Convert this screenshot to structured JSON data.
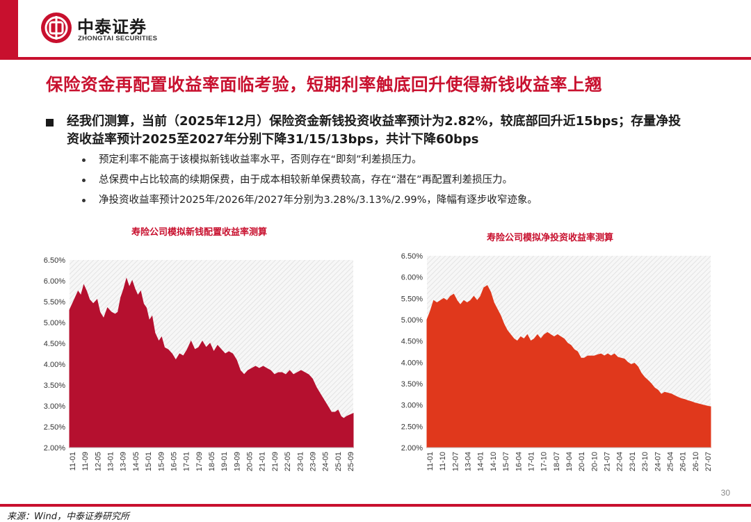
{
  "header": {
    "company_cn": "中泰证券",
    "company_en": "ZHONGTAI SECURITIES"
  },
  "title": "保险资金再配置收益率面临考验，短期利率触底回升使得新钱收益率上翘",
  "main_point": "经我们测算，当前（2025年12月）保险资金新钱投资收益率预计为2.82%，较底部回升近15bps；存量净投资收益率预计2025至2027年分别下降31/15/13bps，共计下降60bps",
  "sub_points": [
    "预定利率不能高于该模拟新钱收益率水平，否则存在“即刻”利差损压力。",
    "总保费中占比较高的续期保费，由于成本相较新单保费较高，存在“潜在”再配置利差损压力。",
    "净投资收益率预计2025年/2026年/2027年分别为3.28%/3.13%/2.99%，降幅有逐步收窄迹象。"
  ],
  "colors": {
    "brand": "#c8102e",
    "chart1_fill": "#b5102f",
    "chart2_fill": "#e0381c"
  },
  "chart_data": [
    {
      "type": "area",
      "title": "寿险公司模拟新钱配置收益率测算",
      "ylim": [
        0.02,
        0.065
      ],
      "y_ticks": [
        "2.00%",
        "2.50%",
        "3.00%",
        "3.50%",
        "4.00%",
        "4.50%",
        "5.00%",
        "5.50%",
        "6.00%",
        "6.50%"
      ],
      "x_ticks": [
        "11-01",
        "11-09",
        "12-05",
        "13-01",
        "13-09",
        "14-05",
        "15-01",
        "15-09",
        "16-05",
        "17-01",
        "17-09",
        "18-05",
        "19-01",
        "19-09",
        "20-05",
        "21-01",
        "21-09",
        "22-05",
        "23-01",
        "23-09",
        "24-05",
        "25-01",
        "25-09"
      ],
      "x_range": [
        2011.0,
        2025.95
      ],
      "points": [
        [
          2011.0,
          0.053
        ],
        [
          2011.2,
          0.055
        ],
        [
          2011.45,
          0.0575
        ],
        [
          2011.6,
          0.0565
        ],
        [
          2011.75,
          0.059
        ],
        [
          2011.9,
          0.0575
        ],
        [
          2012.05,
          0.0555
        ],
        [
          2012.25,
          0.0545
        ],
        [
          2012.45,
          0.0555
        ],
        [
          2012.6,
          0.0525
        ],
        [
          2012.8,
          0.051
        ],
        [
          2013.0,
          0.0535
        ],
        [
          2013.2,
          0.0525
        ],
        [
          2013.4,
          0.052
        ],
        [
          2013.55,
          0.0525
        ],
        [
          2013.7,
          0.056
        ],
        [
          2013.85,
          0.058
        ],
        [
          2014.0,
          0.0605
        ],
        [
          2014.15,
          0.0585
        ],
        [
          2014.3,
          0.06
        ],
        [
          2014.45,
          0.058
        ],
        [
          2014.6,
          0.0565
        ],
        [
          2014.75,
          0.0575
        ],
        [
          2014.9,
          0.0545
        ],
        [
          2015.05,
          0.0535
        ],
        [
          2015.2,
          0.0505
        ],
        [
          2015.35,
          0.0515
        ],
        [
          2015.5,
          0.0475
        ],
        [
          2015.7,
          0.0455
        ],
        [
          2015.85,
          0.0465
        ],
        [
          2016.0,
          0.044
        ],
        [
          2016.2,
          0.0435
        ],
        [
          2016.4,
          0.0425
        ],
        [
          2016.6,
          0.041
        ],
        [
          2016.8,
          0.0425
        ],
        [
          2017.0,
          0.042
        ],
        [
          2017.2,
          0.0435
        ],
        [
          2017.4,
          0.0455
        ],
        [
          2017.6,
          0.0435
        ],
        [
          2017.8,
          0.044
        ],
        [
          2018.0,
          0.0455
        ],
        [
          2018.2,
          0.044
        ],
        [
          2018.4,
          0.045
        ],
        [
          2018.6,
          0.043
        ],
        [
          2018.8,
          0.0445
        ],
        [
          2019.0,
          0.0435
        ],
        [
          2019.2,
          0.0425
        ],
        [
          2019.4,
          0.043
        ],
        [
          2019.6,
          0.0425
        ],
        [
          2019.8,
          0.041
        ],
        [
          2020.0,
          0.0385
        ],
        [
          2020.2,
          0.0375
        ],
        [
          2020.4,
          0.0385
        ],
        [
          2020.6,
          0.039
        ],
        [
          2020.8,
          0.0395
        ],
        [
          2021.0,
          0.039
        ],
        [
          2021.2,
          0.0395
        ],
        [
          2021.4,
          0.039
        ],
        [
          2021.6,
          0.0385
        ],
        [
          2021.8,
          0.0375
        ],
        [
          2022.0,
          0.038
        ],
        [
          2022.2,
          0.038
        ],
        [
          2022.4,
          0.0375
        ],
        [
          2022.6,
          0.0385
        ],
        [
          2022.8,
          0.0375
        ],
        [
          2023.0,
          0.038
        ],
        [
          2023.2,
          0.0385
        ],
        [
          2023.4,
          0.038
        ],
        [
          2023.6,
          0.0375
        ],
        [
          2023.8,
          0.0365
        ],
        [
          2024.0,
          0.0345
        ],
        [
          2024.2,
          0.033
        ],
        [
          2024.4,
          0.0315
        ],
        [
          2024.6,
          0.03
        ],
        [
          2024.8,
          0.0285
        ],
        [
          2025.0,
          0.0285
        ],
        [
          2025.15,
          0.029
        ],
        [
          2025.3,
          0.0275
        ],
        [
          2025.45,
          0.027
        ],
        [
          2025.6,
          0.0275
        ],
        [
          2025.75,
          0.0278
        ],
        [
          2025.95,
          0.0282
        ]
      ]
    },
    {
      "type": "area",
      "title": "寿险公司模拟净投资收益率测算",
      "ylim": [
        0.02,
        0.065
      ],
      "y_ticks": [
        "2.00%",
        "2.50%",
        "3.00%",
        "3.50%",
        "4.00%",
        "4.50%",
        "5.00%",
        "5.50%",
        "6.00%",
        "6.50%"
      ],
      "x_ticks": [
        "11-01",
        "11-10",
        "12-07",
        "13-04",
        "14-01",
        "14-10",
        "15-07",
        "16-04",
        "17-01",
        "17-10",
        "18-07",
        "19-04",
        "20-01",
        "20-10",
        "21-07",
        "22-04",
        "23-01",
        "23-10",
        "24-07",
        "25-04",
        "26-01",
        "26-10",
        "27-07"
      ],
      "x_range": [
        2011.0,
        2027.95
      ],
      "points": [
        [
          2011.0,
          0.05
        ],
        [
          2011.2,
          0.052
        ],
        [
          2011.4,
          0.0545
        ],
        [
          2011.6,
          0.054
        ],
        [
          2011.8,
          0.0545
        ],
        [
          2012.0,
          0.055
        ],
        [
          2012.2,
          0.0545
        ],
        [
          2012.4,
          0.0555
        ],
        [
          2012.6,
          0.056
        ],
        [
          2012.8,
          0.0545
        ],
        [
          2013.0,
          0.0535
        ],
        [
          2013.2,
          0.0545
        ],
        [
          2013.4,
          0.054
        ],
        [
          2013.6,
          0.0545
        ],
        [
          2013.8,
          0.0555
        ],
        [
          2014.0,
          0.0545
        ],
        [
          2014.2,
          0.0555
        ],
        [
          2014.4,
          0.0575
        ],
        [
          2014.6,
          0.058
        ],
        [
          2014.8,
          0.0565
        ],
        [
          2015.0,
          0.054
        ],
        [
          2015.2,
          0.0525
        ],
        [
          2015.4,
          0.051
        ],
        [
          2015.6,
          0.049
        ],
        [
          2015.8,
          0.0475
        ],
        [
          2016.0,
          0.0465
        ],
        [
          2016.2,
          0.0455
        ],
        [
          2016.4,
          0.045
        ],
        [
          2016.6,
          0.046
        ],
        [
          2016.8,
          0.0455
        ],
        [
          2017.0,
          0.0465
        ],
        [
          2017.2,
          0.045
        ],
        [
          2017.4,
          0.0455
        ],
        [
          2017.6,
          0.0465
        ],
        [
          2017.8,
          0.0455
        ],
        [
          2018.0,
          0.0465
        ],
        [
          2018.2,
          0.047
        ],
        [
          2018.4,
          0.0465
        ],
        [
          2018.6,
          0.046
        ],
        [
          2018.8,
          0.0465
        ],
        [
          2019.0,
          0.046
        ],
        [
          2019.2,
          0.0455
        ],
        [
          2019.4,
          0.0445
        ],
        [
          2019.6,
          0.044
        ],
        [
          2019.8,
          0.043
        ],
        [
          2020.0,
          0.0425
        ],
        [
          2020.2,
          0.041
        ],
        [
          2020.4,
          0.041
        ],
        [
          2020.6,
          0.0415
        ],
        [
          2020.8,
          0.0415
        ],
        [
          2021.0,
          0.0415
        ],
        [
          2021.2,
          0.0418
        ],
        [
          2021.4,
          0.042
        ],
        [
          2021.6,
          0.0415
        ],
        [
          2021.8,
          0.042
        ],
        [
          2022.0,
          0.0415
        ],
        [
          2022.2,
          0.042
        ],
        [
          2022.4,
          0.0412
        ],
        [
          2022.6,
          0.041
        ],
        [
          2022.8,
          0.0408
        ],
        [
          2023.0,
          0.04
        ],
        [
          2023.2,
          0.0395
        ],
        [
          2023.4,
          0.0398
        ],
        [
          2023.6,
          0.039
        ],
        [
          2023.8,
          0.0375
        ],
        [
          2024.0,
          0.0365
        ],
        [
          2024.2,
          0.0358
        ],
        [
          2024.4,
          0.035
        ],
        [
          2024.6,
          0.034
        ],
        [
          2024.8,
          0.0335
        ],
        [
          2025.0,
          0.0325
        ],
        [
          2025.2,
          0.033
        ],
        [
          2025.4,
          0.0328
        ],
        [
          2025.6,
          0.0326
        ],
        [
          2025.8,
          0.0322
        ],
        [
          2026.0,
          0.0318
        ],
        [
          2026.2,
          0.0315
        ],
        [
          2026.4,
          0.0313
        ],
        [
          2026.6,
          0.031
        ],
        [
          2026.8,
          0.0308
        ],
        [
          2027.0,
          0.0305
        ],
        [
          2027.2,
          0.0303
        ],
        [
          2027.4,
          0.0301
        ],
        [
          2027.6,
          0.0299
        ],
        [
          2027.8,
          0.0297
        ],
        [
          2027.95,
          0.0296
        ]
      ]
    }
  ],
  "footer": {
    "source": "来源：Wind，中泰证券研究所",
    "page_number": "30"
  }
}
